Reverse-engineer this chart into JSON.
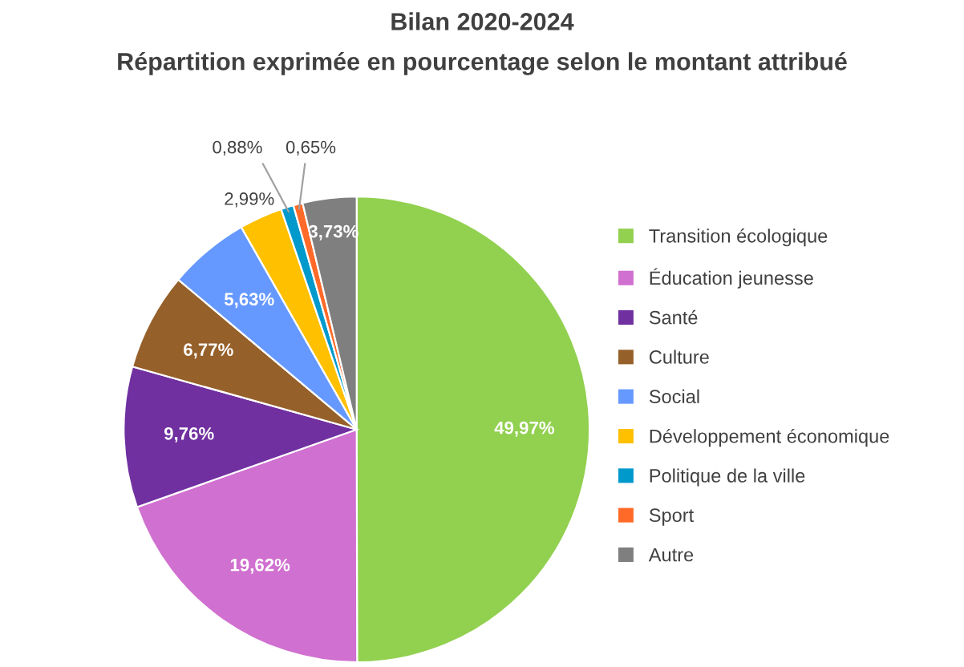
{
  "chart_data": {
    "type": "pie",
    "title": "Bilan 2020-2024",
    "subtitle": "Répartition exprimée en pourcentage selon le montant attribué",
    "categories": [
      "Transition écologique",
      "Éducation jeunesse",
      "Santé",
      "Culture",
      "Social",
      "Développement économique",
      "Politique de la ville",
      "Sport",
      "Autre"
    ],
    "values": [
      49.97,
      19.62,
      9.76,
      6.77,
      5.63,
      2.99,
      0.88,
      0.65,
      3.73
    ],
    "value_labels": [
      "49,97%",
      "19,62%",
      "9,76%",
      "6,77%",
      "5,63%",
      "2,99%",
      "0,88%",
      "0,65%",
      "3,73%"
    ],
    "colors": [
      "#92d050",
      "#d070d0",
      "#7030a0",
      "#96602a",
      "#6699ff",
      "#ffc000",
      "#0099cc",
      "#ff6a28",
      "#7f7f7f"
    ],
    "legend": "right"
  }
}
